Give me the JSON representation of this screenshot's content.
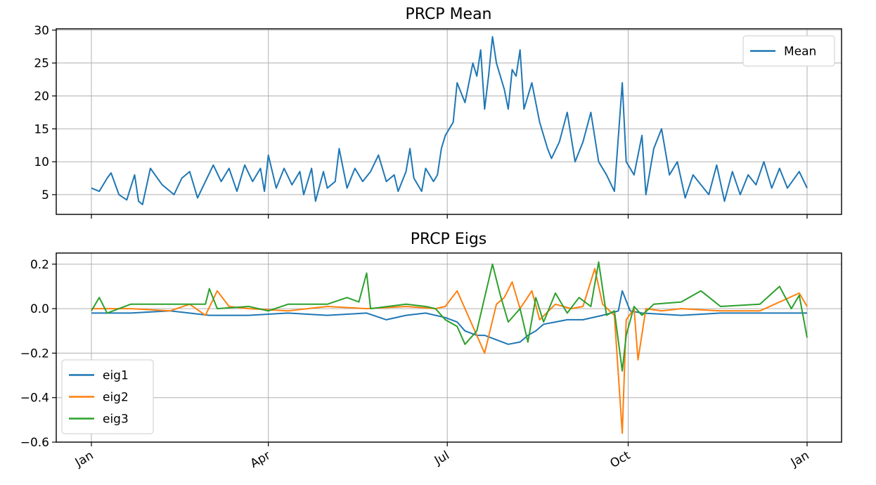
{
  "chart_data": [
    {
      "type": "line",
      "title": "PRCP Mean",
      "xlabel": "",
      "ylabel": "",
      "x_domain": [
        0,
        364
      ],
      "x_ticks": [
        {
          "day": 0,
          "label": "Jan"
        },
        {
          "day": 90,
          "label": "Apr"
        },
        {
          "day": 181,
          "label": "Jul"
        },
        {
          "day": 273,
          "label": "Oct"
        },
        {
          "day": 364,
          "label": "Jan"
        }
      ],
      "ylim": [
        2,
        30.2
      ],
      "y_ticks": [
        5,
        10,
        15,
        20,
        25,
        30
      ],
      "grid": true,
      "legend_position": "top-right",
      "series": [
        {
          "name": "Mean",
          "color": "#1f77b4",
          "points": [
            [
              0,
              6.0
            ],
            [
              4,
              5.5
            ],
            [
              8,
              7.5
            ],
            [
              10,
              8.3
            ],
            [
              14,
              5.0
            ],
            [
              18,
              4.2
            ],
            [
              22,
              8.0
            ],
            [
              24,
              4.0
            ],
            [
              26,
              3.5
            ],
            [
              30,
              9.0
            ],
            [
              36,
              6.5
            ],
            [
              42,
              5.0
            ],
            [
              46,
              7.5
            ],
            [
              50,
              8.5
            ],
            [
              54,
              4.5
            ],
            [
              58,
              7.0
            ],
            [
              62,
              9.5
            ],
            [
              66,
              7.0
            ],
            [
              70,
              9.0
            ],
            [
              74,
              5.5
            ],
            [
              78,
              9.5
            ],
            [
              82,
              7.0
            ],
            [
              86,
              9.0
            ],
            [
              88,
              5.5
            ],
            [
              90,
              11.0
            ],
            [
              94,
              6.0
            ],
            [
              98,
              9.0
            ],
            [
              102,
              6.5
            ],
            [
              106,
              8.5
            ],
            [
              108,
              5.0
            ],
            [
              112,
              9.0
            ],
            [
              114,
              4.0
            ],
            [
              118,
              8.5
            ],
            [
              120,
              6.0
            ],
            [
              124,
              7.0
            ],
            [
              126,
              12.0
            ],
            [
              130,
              6.0
            ],
            [
              134,
              9.0
            ],
            [
              138,
              7.0
            ],
            [
              142,
              8.5
            ],
            [
              146,
              11.0
            ],
            [
              150,
              7.0
            ],
            [
              154,
              8.0
            ],
            [
              156,
              5.5
            ],
            [
              160,
              8.5
            ],
            [
              162,
              12.0
            ],
            [
              164,
              7.5
            ],
            [
              168,
              5.5
            ],
            [
              170,
              9.0
            ],
            [
              174,
              7.0
            ],
            [
              176,
              8.0
            ],
            [
              178,
              12.0
            ],
            [
              180,
              14.0
            ],
            [
              184,
              16.0
            ],
            [
              186,
              22.0
            ],
            [
              190,
              19.0
            ],
            [
              194,
              25.0
            ],
            [
              196,
              23.0
            ],
            [
              198,
              27.0
            ],
            [
              200,
              18.0
            ],
            [
              202,
              23.0
            ],
            [
              204,
              29.0
            ],
            [
              206,
              25.0
            ],
            [
              210,
              21.0
            ],
            [
              212,
              18.0
            ],
            [
              214,
              24.0
            ],
            [
              216,
              23.0
            ],
            [
              218,
              27.0
            ],
            [
              220,
              18.0
            ],
            [
              224,
              22.0
            ],
            [
              228,
              16.0
            ],
            [
              232,
              12.0
            ],
            [
              234,
              10.5
            ],
            [
              238,
              13.0
            ],
            [
              242,
              17.5
            ],
            [
              246,
              10.0
            ],
            [
              250,
              13.0
            ],
            [
              254,
              17.5
            ],
            [
              258,
              10.0
            ],
            [
              262,
              8.0
            ],
            [
              266,
              5.5
            ],
            [
              270,
              22.0
            ],
            [
              272,
              10.0
            ],
            [
              276,
              8.0
            ],
            [
              280,
              14.0
            ],
            [
              282,
              5.0
            ],
            [
              286,
              12.0
            ],
            [
              290,
              15.0
            ],
            [
              294,
              8.0
            ],
            [
              298,
              10.0
            ],
            [
              302,
              4.5
            ],
            [
              306,
              8.0
            ],
            [
              310,
              6.5
            ],
            [
              314,
              5.0
            ],
            [
              318,
              9.5
            ],
            [
              322,
              4.0
            ],
            [
              326,
              8.5
            ],
            [
              330,
              5.0
            ],
            [
              334,
              8.0
            ],
            [
              338,
              6.5
            ],
            [
              342,
              10.0
            ],
            [
              346,
              6.0
            ],
            [
              350,
              9.0
            ],
            [
              354,
              6.0
            ],
            [
              360,
              8.5
            ],
            [
              364,
              6.0
            ]
          ]
        }
      ]
    },
    {
      "type": "line",
      "title": "PRCP Eigs",
      "xlabel": "",
      "ylabel": "",
      "x_domain": [
        0,
        364
      ],
      "x_ticks": [
        {
          "day": 0,
          "label": "Jan"
        },
        {
          "day": 90,
          "label": "Apr"
        },
        {
          "day": 181,
          "label": "Jul"
        },
        {
          "day": 273,
          "label": "Oct"
        },
        {
          "day": 364,
          "label": "Jan"
        }
      ],
      "ylim": [
        -0.6,
        0.25
      ],
      "y_ticks": [
        -0.6,
        -0.4,
        -0.2,
        0.0,
        0.2
      ],
      "grid": true,
      "legend_position": "bottom-left",
      "series": [
        {
          "name": "eig1",
          "color": "#1f77b4",
          "points": [
            [
              0,
              -0.02
            ],
            [
              20,
              -0.02
            ],
            [
              40,
              -0.01
            ],
            [
              60,
              -0.03
            ],
            [
              80,
              -0.03
            ],
            [
              100,
              -0.02
            ],
            [
              120,
              -0.03
            ],
            [
              140,
              -0.02
            ],
            [
              150,
              -0.05
            ],
            [
              160,
              -0.03
            ],
            [
              170,
              -0.02
            ],
            [
              180,
              -0.04
            ],
            [
              186,
              -0.06
            ],
            [
              190,
              -0.1
            ],
            [
              196,
              -0.12
            ],
            [
              200,
              -0.12
            ],
            [
              206,
              -0.14
            ],
            [
              212,
              -0.16
            ],
            [
              218,
              -0.15
            ],
            [
              222,
              -0.12
            ],
            [
              226,
              -0.1
            ],
            [
              230,
              -0.07
            ],
            [
              236,
              -0.06
            ],
            [
              242,
              -0.05
            ],
            [
              250,
              -0.05
            ],
            [
              260,
              -0.03
            ],
            [
              268,
              -0.01
            ],
            [
              270,
              0.08
            ],
            [
              274,
              -0.01
            ],
            [
              280,
              -0.02
            ],
            [
              300,
              -0.03
            ],
            [
              320,
              -0.02
            ],
            [
              340,
              -0.02
            ],
            [
              364,
              -0.02
            ]
          ]
        },
        {
          "name": "eig2",
          "color": "#ff7f0e",
          "points": [
            [
              0,
              0.0
            ],
            [
              20,
              0.0
            ],
            [
              40,
              -0.01
            ],
            [
              50,
              0.02
            ],
            [
              58,
              -0.03
            ],
            [
              64,
              0.08
            ],
            [
              70,
              0.01
            ],
            [
              80,
              0.0
            ],
            [
              100,
              -0.01
            ],
            [
              120,
              0.01
            ],
            [
              140,
              0.0
            ],
            [
              160,
              0.01
            ],
            [
              175,
              0.0
            ],
            [
              180,
              0.01
            ],
            [
              186,
              0.08
            ],
            [
              190,
              0.0
            ],
            [
              196,
              -0.12
            ],
            [
              200,
              -0.2
            ],
            [
              206,
              0.02
            ],
            [
              210,
              0.05
            ],
            [
              214,
              0.12
            ],
            [
              218,
              0.0
            ],
            [
              224,
              0.08
            ],
            [
              228,
              -0.05
            ],
            [
              236,
              0.02
            ],
            [
              244,
              0.0
            ],
            [
              250,
              0.01
            ],
            [
              256,
              0.18
            ],
            [
              260,
              0.02
            ],
            [
              266,
              -0.03
            ],
            [
              270,
              -0.56
            ],
            [
              272,
              -0.05
            ],
            [
              276,
              0.0
            ],
            [
              278,
              -0.23
            ],
            [
              282,
              0.0
            ],
            [
              290,
              -0.01
            ],
            [
              300,
              0.0
            ],
            [
              320,
              -0.01
            ],
            [
              340,
              -0.01
            ],
            [
              360,
              0.07
            ],
            [
              364,
              0.01
            ]
          ]
        },
        {
          "name": "eig3",
          "color": "#2ca02c",
          "points": [
            [
              0,
              -0.01
            ],
            [
              4,
              0.05
            ],
            [
              8,
              -0.02
            ],
            [
              20,
              0.02
            ],
            [
              40,
              0.02
            ],
            [
              58,
              0.02
            ],
            [
              60,
              0.09
            ],
            [
              64,
              0.0
            ],
            [
              80,
              0.01
            ],
            [
              90,
              -0.01
            ],
            [
              100,
              0.02
            ],
            [
              120,
              0.02
            ],
            [
              130,
              0.05
            ],
            [
              136,
              0.03
            ],
            [
              140,
              0.16
            ],
            [
              142,
              0.0
            ],
            [
              160,
              0.02
            ],
            [
              170,
              0.01
            ],
            [
              175,
              0.0
            ],
            [
              180,
              -0.05
            ],
            [
              186,
              -0.08
            ],
            [
              190,
              -0.16
            ],
            [
              196,
              -0.1
            ],
            [
              200,
              0.05
            ],
            [
              204,
              0.2
            ],
            [
              208,
              0.06
            ],
            [
              212,
              -0.06
            ],
            [
              218,
              0.0
            ],
            [
              222,
              -0.15
            ],
            [
              226,
              0.05
            ],
            [
              230,
              -0.06
            ],
            [
              236,
              0.07
            ],
            [
              242,
              -0.02
            ],
            [
              248,
              0.05
            ],
            [
              254,
              0.01
            ],
            [
              258,
              0.21
            ],
            [
              262,
              -0.03
            ],
            [
              266,
              -0.01
            ],
            [
              270,
              -0.28
            ],
            [
              272,
              -0.12
            ],
            [
              276,
              0.01
            ],
            [
              280,
              -0.03
            ],
            [
              286,
              0.02
            ],
            [
              300,
              0.03
            ],
            [
              310,
              0.08
            ],
            [
              320,
              0.01
            ],
            [
              340,
              0.02
            ],
            [
              350,
              0.1
            ],
            [
              356,
              0.0
            ],
            [
              360,
              0.06
            ],
            [
              364,
              -0.13
            ]
          ]
        }
      ]
    }
  ]
}
